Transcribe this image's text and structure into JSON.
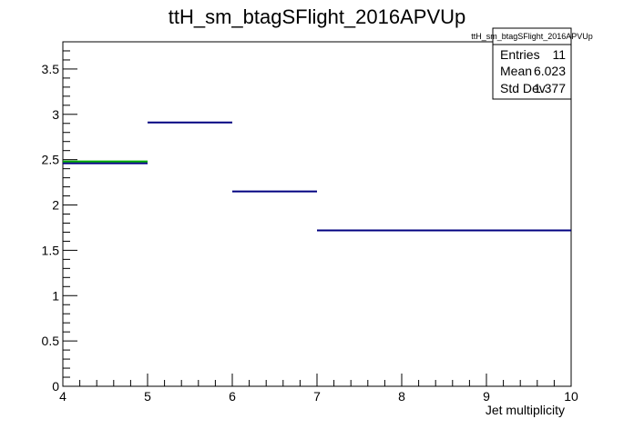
{
  "chart_data": {
    "type": "step",
    "title": "ttH_sm_btagSFlight_2016APVUp",
    "xlabel": "Jet multiplicity",
    "ylabel": "",
    "xlim": [
      4,
      10
    ],
    "ylim": [
      0,
      3.8
    ],
    "x_ticks": [
      "4",
      "5",
      "6",
      "7",
      "8",
      "9",
      "10"
    ],
    "y_ticks": [
      "0",
      "0.5",
      "1",
      "1.5",
      "2",
      "2.5",
      "3",
      "3.5"
    ],
    "grid": false,
    "series": [
      {
        "color": "#000080",
        "bins": [
          {
            "x0": 4,
            "x1": 5,
            "y": 2.46
          },
          {
            "x0": 5,
            "x1": 6,
            "y": 2.91
          },
          {
            "x0": 6,
            "x1": 7,
            "y": 2.15
          },
          {
            "x0": 7,
            "x1": 10,
            "y": 1.72
          }
        ]
      },
      {
        "color": "#00aa00",
        "bins": [
          {
            "x0": 4,
            "x1": 5,
            "y": 2.48
          }
        ]
      }
    ],
    "stats_box": {
      "title": "ttH_sm_btagSFlight_2016APVUp",
      "rows": [
        {
          "label": "Entries",
          "value": "11"
        },
        {
          "label": "Mean",
          "value": "6.023"
        },
        {
          "label": "Std Dev",
          "value": "1.377"
        }
      ]
    }
  }
}
